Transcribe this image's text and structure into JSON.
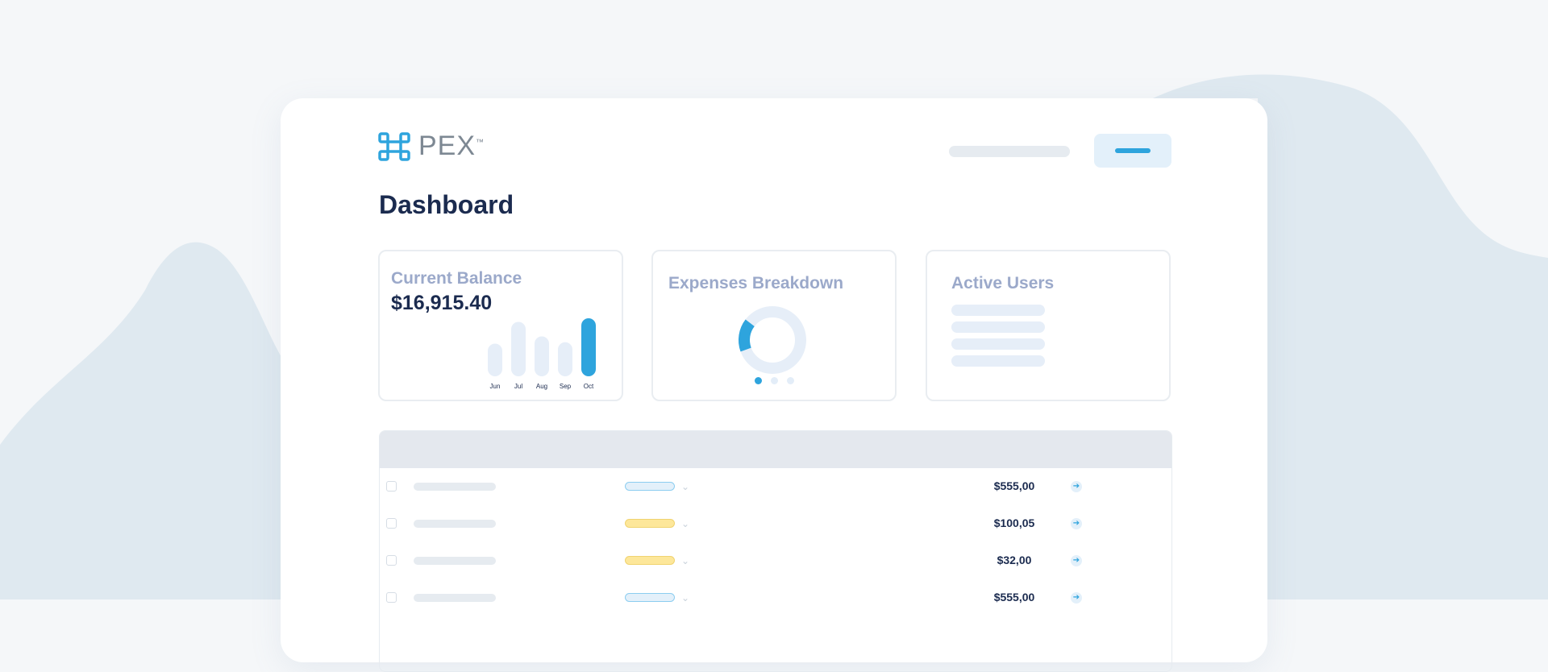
{
  "brand": {
    "name": "PEX",
    "trademark": "™",
    "accent": "#2ea4dd"
  },
  "page": {
    "title": "Dashboard"
  },
  "cards": {
    "balance": {
      "title": "Current Balance",
      "value": "$16,915.40"
    },
    "expenses": {
      "title": "Expenses Breakdown"
    },
    "users": {
      "title": "Active Users"
    }
  },
  "chart_data": {
    "type": "bar",
    "categories": [
      "Jun",
      "Jul",
      "Aug",
      "Sep",
      "Oct"
    ],
    "values": [
      45,
      75,
      55,
      47,
      80
    ],
    "highlight": "Oct"
  },
  "table": {
    "rows": [
      {
        "status_color": "blue",
        "amount": "$555,00"
      },
      {
        "status_color": "yellow",
        "amount": "$100,05"
      },
      {
        "status_color": "yellow",
        "amount": "$32,00"
      },
      {
        "status_color": "blue",
        "amount": "$555,00"
      }
    ]
  }
}
